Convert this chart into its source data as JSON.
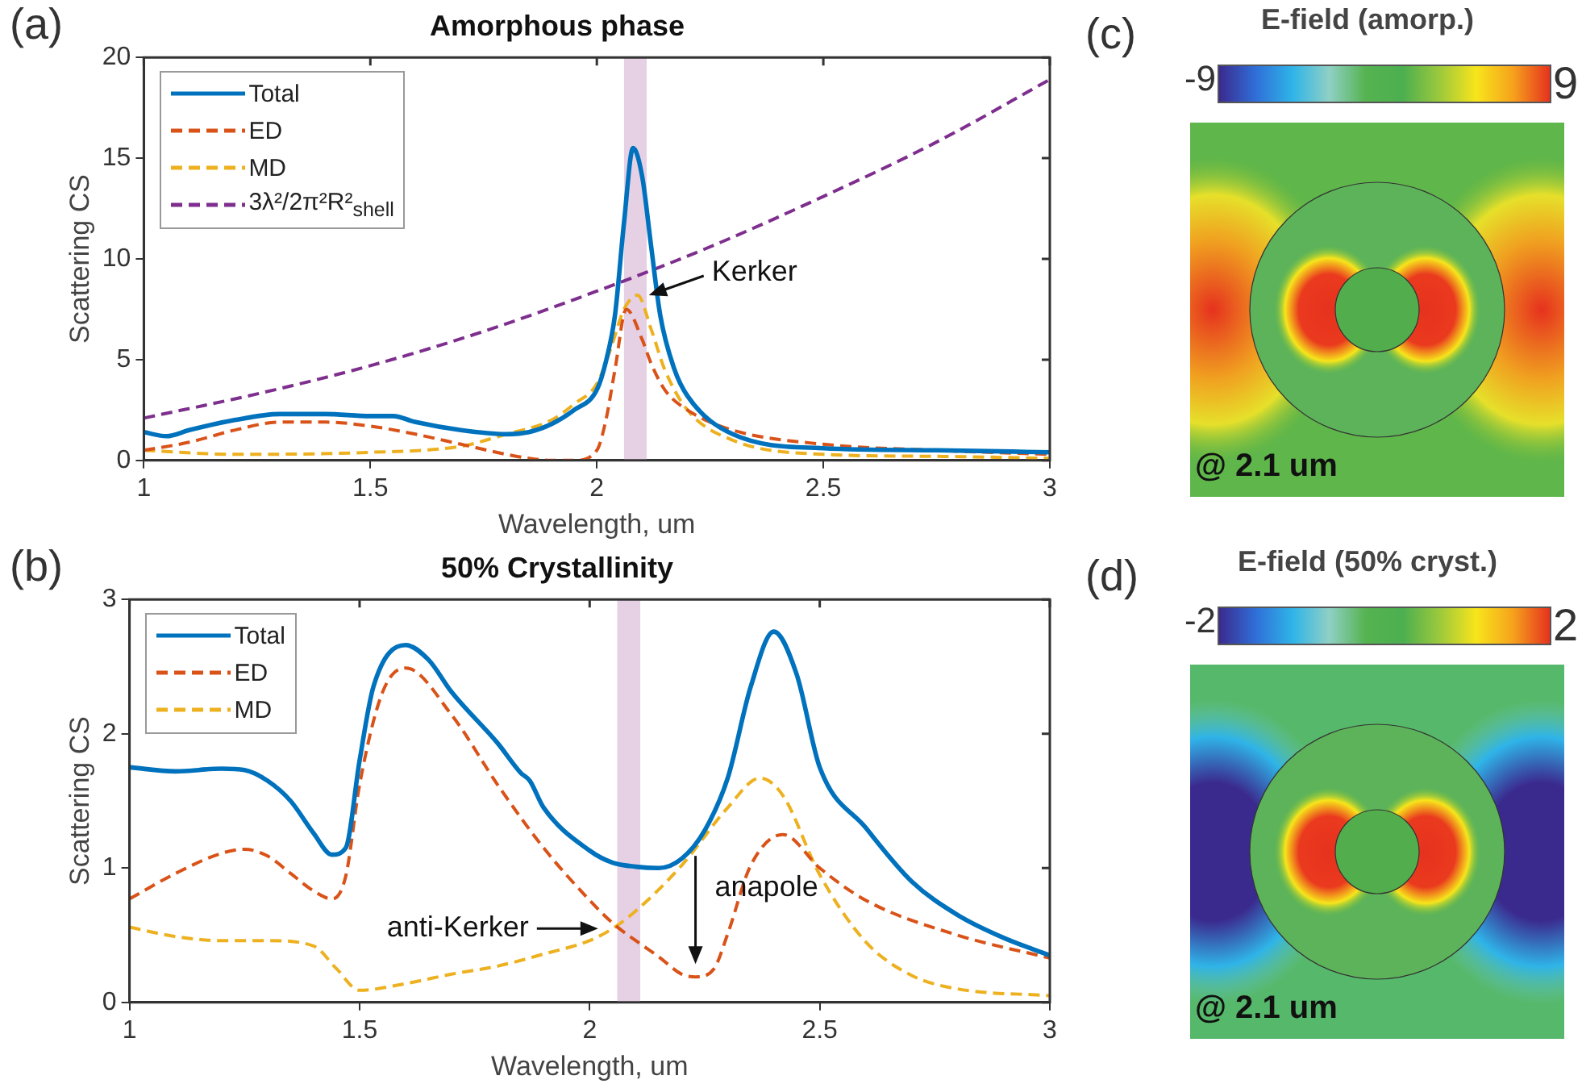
{
  "chart_data": [
    {
      "type": "line",
      "title": "Amorphous phase",
      "xlabel": "Wavelength, um",
      "ylabel": "Scattering CS",
      "xlim": [
        1,
        3
      ],
      "xticks": [
        1,
        1.5,
        2,
        2.5,
        3
      ],
      "ylim": [
        0,
        20
      ],
      "yticks": [
        0,
        5,
        10,
        15,
        20
      ],
      "legend": "top left",
      "series": [
        {
          "name": "Total",
          "color": "#0072bd",
          "line_style": "solid",
          "x": [
            1,
            1.05,
            1.1,
            1.2,
            1.3,
            1.4,
            1.5,
            1.55,
            1.6,
            1.7,
            1.8,
            1.85,
            1.9,
            1.95,
            2,
            2.02,
            2.04,
            2.06,
            2.08,
            2.1,
            2.12,
            2.14,
            2.17,
            2.2,
            2.3,
            2.5,
            2.75,
            3
          ],
          "values": [
            1.4,
            1.2,
            1.5,
            2,
            2.3,
            2.3,
            2.2,
            2.2,
            1.9,
            1.5,
            1.3,
            1.4,
            1.8,
            2.5,
            3.5,
            4.9,
            7.2,
            11.8,
            15.5,
            14.1,
            10.6,
            7.2,
            4.6,
            3.2,
            1.3,
            0.6,
            0.5,
            0.4
          ]
        },
        {
          "name": "ED",
          "color": "#d95319",
          "line_style": "dashed",
          "x": [
            1,
            1.1,
            1.2,
            1.3,
            1.4,
            1.5,
            1.6,
            1.7,
            1.8,
            1.85,
            1.9,
            1.95,
            2,
            2.02,
            2.04,
            2.065,
            2.1,
            2.12,
            2.15,
            2.2,
            2.3,
            2.5,
            2.75,
            3
          ],
          "values": [
            0.5,
            0.9,
            1.5,
            1.9,
            1.9,
            1.7,
            1.3,
            0.8,
            0.3,
            0.1,
            0,
            0,
            0.5,
            2,
            4.5,
            7.5,
            6,
            4.8,
            3.5,
            2.5,
            1.5,
            0.8,
            0.5,
            0.3
          ]
        },
        {
          "name": "MD",
          "color": "#edb120",
          "line_style": "dashed",
          "x": [
            1,
            1.2,
            1.5,
            1.7,
            1.8,
            1.9,
            1.95,
            2,
            2.03,
            2.06,
            2.09,
            2.12,
            2.15,
            2.2,
            2.3,
            2.5,
            2.75,
            3
          ],
          "values": [
            0.5,
            0.3,
            0.4,
            0.7,
            1.3,
            2,
            2.8,
            3.8,
            5.5,
            7.5,
            8.2,
            6.5,
            4.5,
            2.5,
            1,
            0.3,
            0.2,
            0.1
          ]
        },
        {
          "name": "3λ²/2π²R²$_{shell}$",
          "color": "#7e2f8e",
          "line_style": "dashed",
          "x": [
            1,
            1.25,
            1.5,
            1.75,
            2,
            2.25,
            2.5,
            2.75,
            3
          ],
          "values": [
            2.1,
            3.3,
            4.7,
            6.4,
            8.4,
            10.6,
            13.1,
            15.8,
            18.9
          ]
        }
      ],
      "bands": [
        {
          "axis": "x",
          "from": 2.06,
          "to": 2.11,
          "color": "#e6d0e4"
        }
      ],
      "annotations": [
        "(a)",
        {
          "text": "Kerker",
          "x": 2.09,
          "y": 8.2
        }
      ]
    },
    {
      "type": "other",
      "title": "E-field (amorp.)",
      "annotations": [
        "(c)",
        "@ 2.1 um",
        "-9",
        "9"
      ]
    },
    {
      "type": "line",
      "title": "50% Crystallinity",
      "xlabel": "Wavelength, um",
      "ylabel": "Scattering CS",
      "xlim": [
        1,
        3
      ],
      "xticks": [
        1,
        1.5,
        2,
        2.5,
        3
      ],
      "ylim": [
        0,
        3
      ],
      "yticks": [
        0,
        1,
        2,
        3
      ],
      "legend": "top left",
      "series": [
        {
          "name": "Total",
          "color": "#0072bd",
          "line_style": "solid",
          "x": [
            1,
            1.1,
            1.2,
            1.25,
            1.3,
            1.35,
            1.4,
            1.44,
            1.47,
            1.5,
            1.53,
            1.6,
            1.65,
            1.7,
            1.8,
            1.85,
            1.87,
            1.9,
            2,
            2.05,
            2.1,
            2.15,
            2.2,
            2.25,
            2.3,
            2.35,
            2.4,
            2.45,
            2.5,
            2.6,
            2.7,
            2.8,
            2.9,
            3
          ],
          "values": [
            1.75,
            1.72,
            1.74,
            1.73,
            1.65,
            1.5,
            1.26,
            1.1,
            1.15,
            1.8,
            2.35,
            2.66,
            2.55,
            2.31,
            1.93,
            1.71,
            1.65,
            1.45,
            1.13,
            1.04,
            1.01,
            1,
            1.07,
            1.28,
            1.67,
            2.35,
            2.76,
            2.44,
            1.75,
            1.3,
            0.9,
            0.65,
            0.48,
            0.35
          ]
        },
        {
          "name": "ED",
          "color": "#d95319",
          "line_style": "dashed",
          "x": [
            1,
            1.1,
            1.2,
            1.25,
            1.3,
            1.35,
            1.4,
            1.44,
            1.47,
            1.5,
            1.55,
            1.6,
            1.7,
            1.8,
            1.9,
            2,
            2.05,
            2.1,
            2.15,
            2.2,
            2.23,
            2.27,
            2.3,
            2.35,
            2.42,
            2.5,
            2.6,
            2.8,
            3
          ],
          "values": [
            0.77,
            0.96,
            1.11,
            1.14,
            1.09,
            0.96,
            0.83,
            0.77,
            0.94,
            1.62,
            2.31,
            2.49,
            2.14,
            1.62,
            1.15,
            0.76,
            0.59,
            0.46,
            0.34,
            0.21,
            0.19,
            0.25,
            0.51,
            1.02,
            1.25,
            1,
            0.76,
            0.5,
            0.33
          ]
        },
        {
          "name": "MD",
          "color": "#edb120",
          "line_style": "dashed",
          "x": [
            1,
            1.1,
            1.2,
            1.3,
            1.4,
            1.45,
            1.5,
            1.6,
            1.7,
            1.8,
            1.9,
            2,
            2.05,
            2.1,
            2.2,
            2.3,
            2.37,
            2.42,
            2.5,
            2.6,
            2.7,
            2.8,
            3
          ],
          "values": [
            0.56,
            0.49,
            0.46,
            0.46,
            0.42,
            0.25,
            0.09,
            0.14,
            0.21,
            0.27,
            0.36,
            0.46,
            0.55,
            0.68,
            1.02,
            1.45,
            1.67,
            1.54,
            0.95,
            0.45,
            0.2,
            0.1,
            0.05
          ]
        }
      ],
      "bands": [
        {
          "axis": "x",
          "from": 2.06,
          "to": 2.11,
          "color": "#e6d0e4"
        }
      ],
      "annotations": [
        "(b)",
        {
          "text": "anti-Kerker",
          "x": 2.05,
          "y": 0.55
        },
        {
          "text": "anapole",
          "x": 2.23,
          "y": 0.19
        }
      ]
    },
    {
      "type": "other",
      "title": "E-field (50% cryst.)",
      "annotations": [
        "(d)",
        "@ 2.1 um",
        "-2",
        "2"
      ]
    }
  ]
}
